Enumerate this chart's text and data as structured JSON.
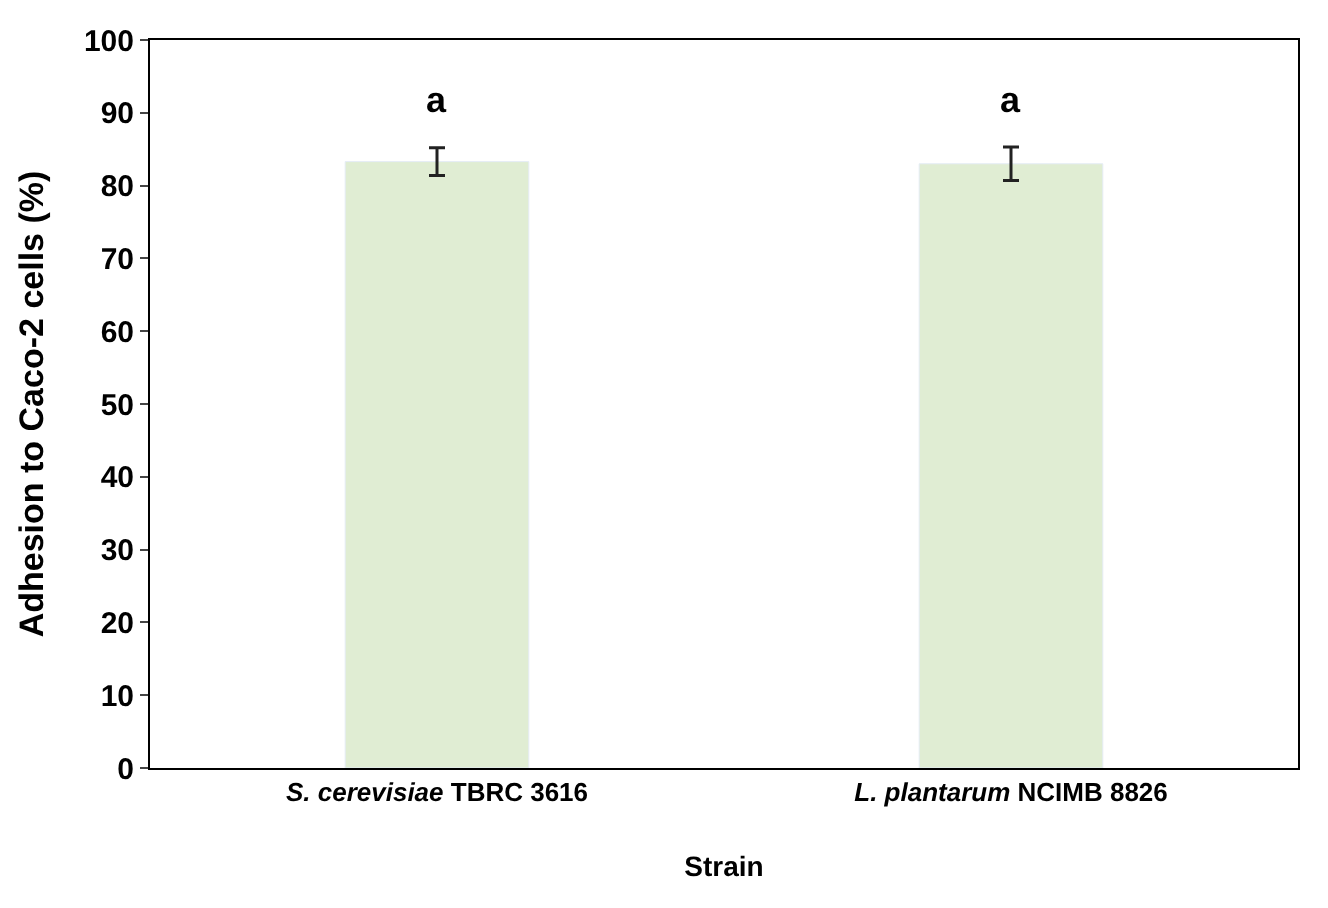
{
  "chart_data": {
    "type": "bar",
    "xlabel": "Strain",
    "ylabel": "Adhesion to Caco-2 cells (%)",
    "categories": [
      "S. cerevisiae TBRC 3616",
      "L. plantarum NCIMB 8826"
    ],
    "values": [
      83.3,
      83.0
    ],
    "errors": [
      1.9,
      2.3
    ],
    "color": "#e0edd3",
    "ylim": [
      0,
      100
    ],
    "yticks": [
      0,
      10,
      20,
      30,
      40,
      50,
      60,
      70,
      80,
      90,
      100
    ],
    "annotations": [
      "a",
      "a"
    ]
  }
}
